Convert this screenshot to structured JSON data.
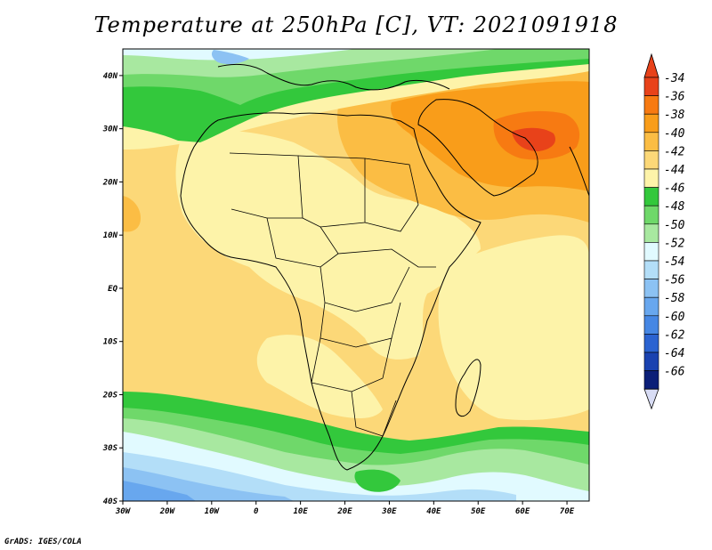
{
  "title": "Temperature at 250hPa [C], VT: 2021091918",
  "footer": "GrADS: IGES/COLA",
  "map": {
    "lon_range": [
      -30,
      75
    ],
    "lat_range": [
      -40,
      45
    ],
    "lon_ticks": [
      "30W",
      "20W",
      "10W",
      "0",
      "10E",
      "20E",
      "30E",
      "40E",
      "50E",
      "60E",
      "70E"
    ],
    "lat_ticks": [
      "40N",
      "30N",
      "20N",
      "10N",
      "EQ",
      "10S",
      "20S",
      "30S",
      "40S"
    ]
  },
  "colorbar": {
    "levels": [
      "-34",
      "-36",
      "-38",
      "-40",
      "-42",
      "-44",
      "-46",
      "-48",
      "-50",
      "-52",
      "-54",
      "-56",
      "-58",
      "-60",
      "-62",
      "-64",
      "-66"
    ],
    "colors": [
      "#e8421a",
      "#f77a12",
      "#f99d1a",
      "#fbbd44",
      "#fcd878",
      "#fdf3a9",
      "#33c83c",
      "#6fd86a",
      "#a8e8a0",
      "#e1faff",
      "#b3def8",
      "#8cc2f3",
      "#68a7ee",
      "#4687e4",
      "#2b63d1",
      "#1a42b0",
      "#0b1f78"
    ],
    "top_cap_color": "#e8421a",
    "bottom_cap_color": "#d8dcf4"
  }
}
